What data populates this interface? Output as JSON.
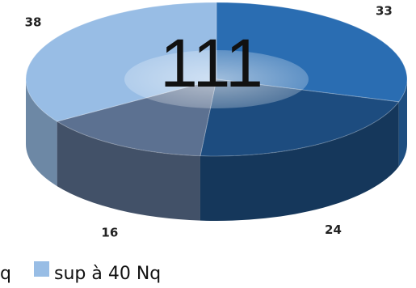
{
  "chart_data": {
    "type": "pie",
    "total": "111",
    "series": [
      {
        "label": "33",
        "value": 33,
        "color": "#2a6db2"
      },
      {
        "label": "24",
        "value": 24,
        "color": "#1d4c7f"
      },
      {
        "label": "16",
        "value": 16,
        "color": "#5c7191"
      },
      {
        "label": "38",
        "value": 38,
        "color": "#98bde5",
        "name": "sup à 40 Nq"
      }
    ],
    "legend": [
      {
        "label": "q",
        "color": null
      },
      {
        "label": "sup à 40 Nq",
        "color": "#98bde5"
      }
    ]
  }
}
